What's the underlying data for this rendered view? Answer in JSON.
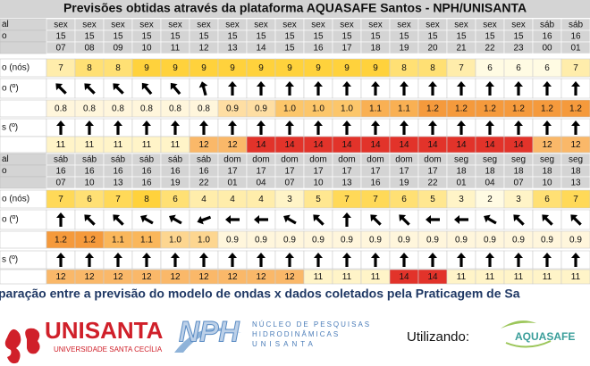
{
  "title": "Previsões obtidas através da plataforma AQUASAFE Santos - NPH/UNISANTA",
  "blocks": [
    {
      "weekdays": {
        "label": "al",
        "values": [
          "sex",
          "sex",
          "sex",
          "sex",
          "sex",
          "sex",
          "sex",
          "sex",
          "sex",
          "sex",
          "sex",
          "sex",
          "sex",
          "sex",
          "sex",
          "sex",
          "sex",
          "sáb",
          "sáb"
        ]
      },
      "days": {
        "label": "o",
        "values": [
          15,
          15,
          15,
          15,
          15,
          15,
          15,
          15,
          15,
          15,
          15,
          15,
          15,
          15,
          15,
          15,
          15,
          16,
          16
        ]
      },
      "hours": {
        "values": [
          "07",
          "08",
          "09",
          "10",
          "11",
          "12",
          "13",
          "14",
          "15",
          "16",
          "17",
          "18",
          "19",
          "20",
          "21",
          "22",
          "23",
          "00",
          "01"
        ]
      },
      "wind": {
        "label": "o (nós)",
        "palette": [
          "#fffbe3",
          "#ffd23c"
        ],
        "values": [
          7,
          8,
          8,
          9,
          9,
          9,
          9,
          9,
          9,
          9,
          9,
          9,
          8,
          8,
          7,
          6,
          6,
          6,
          7
        ]
      },
      "wind_dir": {
        "label": "o (º)",
        "values": [
          315,
          315,
          315,
          320,
          320,
          345,
          0,
          0,
          0,
          0,
          0,
          0,
          0,
          0,
          0,
          0,
          0,
          0,
          0
        ]
      },
      "wave_height": {
        "palette": [
          "#fff6dc",
          "#fcc66a",
          "#f59a3c"
        ],
        "values": [
          "0.8",
          "0.8",
          "0.8",
          "0.8",
          "0.8",
          "0.8",
          "0.9",
          "0.9",
          "1.0",
          "1.0",
          "1.0",
          "1.1",
          "1.1",
          "1.2",
          "1.2",
          "1.2",
          "1.2",
          "1.2",
          "1.2"
        ]
      },
      "wave_dir": {
        "label": "s (º)",
        "values": [
          0,
          0,
          0,
          0,
          0,
          0,
          0,
          0,
          0,
          0,
          0,
          0,
          0,
          0,
          0,
          0,
          0,
          0,
          0
        ]
      },
      "period": {
        "palette": [
          "#fff4c8",
          "#f79a3a",
          "#e2332a"
        ],
        "values": [
          11,
          11,
          11,
          11,
          11,
          12,
          12,
          14,
          14,
          14,
          14,
          14,
          14,
          14,
          14,
          14,
          14,
          12,
          12
        ]
      }
    },
    {
      "weekdays": {
        "label": "al",
        "values": [
          "sáb",
          "sáb",
          "sáb",
          "sáb",
          "sáb",
          "sáb",
          "dom",
          "dom",
          "dom",
          "dom",
          "dom",
          "dom",
          "dom",
          "dom",
          "seg",
          "seg",
          "seg",
          "seg",
          "seg"
        ]
      },
      "days": {
        "label": "o",
        "values": [
          16,
          16,
          16,
          16,
          16,
          16,
          17,
          17,
          17,
          17,
          17,
          17,
          17,
          17,
          18,
          18,
          18,
          18,
          18
        ]
      },
      "hours": {
        "values": [
          "07",
          "10",
          "13",
          "16",
          "19",
          "22",
          "01",
          "04",
          "07",
          "10",
          "13",
          "16",
          "19",
          "22",
          "01",
          "04",
          "07",
          "10",
          "13"
        ]
      },
      "wind": {
        "label": "o (nós)",
        "palette": [
          "#fffbe3",
          "#ffd23c"
        ],
        "values": [
          7,
          6,
          7,
          8,
          6,
          4,
          4,
          4,
          3,
          5,
          7,
          7,
          6,
          5,
          3,
          2,
          3,
          6,
          7
        ]
      },
      "wind_dir": {
        "label": "o (º)",
        "values": [
          0,
          315,
          315,
          300,
          300,
          250,
          270,
          270,
          300,
          315,
          0,
          315,
          315,
          270,
          270,
          300,
          315,
          315,
          315
        ]
      },
      "wave_height": {
        "palette": [
          "#fff6dc",
          "#fcc66a",
          "#f59a3c"
        ],
        "values": [
          "1.2",
          "1.2",
          "1.1",
          "1.1",
          "1.0",
          "1.0",
          "0.9",
          "0.9",
          "0.9",
          "0.9",
          "0.9",
          "0.9",
          "0.9",
          "0.9",
          "0.9",
          "0.9",
          "0.9",
          "0.9",
          "0.9"
        ]
      },
      "wave_dir": {
        "label": "s (º)",
        "values": [
          0,
          0,
          0,
          0,
          0,
          0,
          0,
          0,
          0,
          0,
          0,
          0,
          0,
          0,
          0,
          0,
          0,
          0,
          0
        ]
      },
      "period": {
        "palette": [
          "#fff4c8",
          "#f79a3a",
          "#e2332a"
        ],
        "values": [
          12,
          12,
          12,
          12,
          12,
          12,
          12,
          12,
          12,
          11,
          11,
          11,
          14,
          14,
          11,
          11,
          11,
          11,
          11
        ]
      }
    }
  ],
  "caption": "paração entre a previsão do modelo de ondas x dados coletados pela Praticagem de Sa",
  "logos": {
    "unisanta": {
      "name": "UNISANTA",
      "subtitle": "UNIVERSIDADE SANTA CECÍLIA"
    },
    "nph": {
      "name": "NPH",
      "lines": [
        "NÚCLEO DE PESQUISAS",
        "HIDRODINÂMICAS",
        "UNISANTA"
      ]
    },
    "using": "Utilizando:",
    "aquasafe": "AQUASAFE"
  }
}
